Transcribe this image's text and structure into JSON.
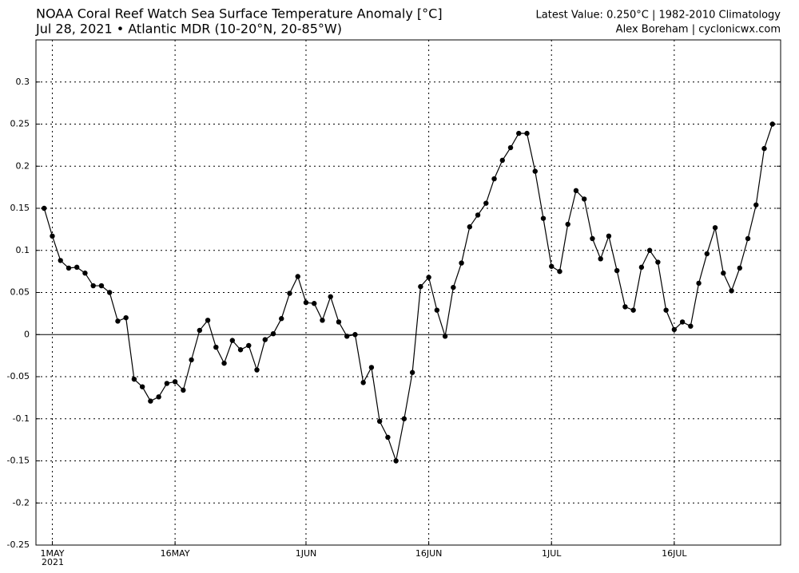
{
  "chart_data": {
    "type": "line",
    "title": "NOAA Coral Reef Watch Sea Surface Temperature Anomaly [°C]",
    "subtitle": "Jul 28, 2021 • Atlantic MDR (10-20°N, 20-85°W)",
    "info": "Latest Value: 0.250°C | 1982-2010 Climatology",
    "credit": "Alex Boreham | cyclonicwx.com",
    "year_label": "2021",
    "color": "#000000",
    "grid": true,
    "xlim": [
      "2021-04-29",
      "2021-07-29"
    ],
    "ylim": [
      -0.25,
      0.35
    ],
    "yticks": [
      -0.25,
      -0.2,
      -0.15,
      -0.1,
      -0.05,
      0,
      0.05,
      0.1,
      0.15,
      0.2,
      0.25,
      0.3
    ],
    "xticks": [
      {
        "value": "2021-05-01",
        "label": "1MAY"
      },
      {
        "value": "2021-05-16",
        "label": "16MAY"
      },
      {
        "value": "2021-06-01",
        "label": "1JUN"
      },
      {
        "value": "2021-06-16",
        "label": "16JUN"
      },
      {
        "value": "2021-07-01",
        "label": "1JUL"
      },
      {
        "value": "2021-07-16",
        "label": "16JUL"
      }
    ],
    "x": [
      "2021-04-30",
      "2021-05-01",
      "2021-05-02",
      "2021-05-03",
      "2021-05-04",
      "2021-05-05",
      "2021-05-06",
      "2021-05-07",
      "2021-05-08",
      "2021-05-09",
      "2021-05-10",
      "2021-05-11",
      "2021-05-12",
      "2021-05-13",
      "2021-05-14",
      "2021-05-15",
      "2021-05-16",
      "2021-05-17",
      "2021-05-18",
      "2021-05-19",
      "2021-05-20",
      "2021-05-21",
      "2021-05-22",
      "2021-05-23",
      "2021-05-24",
      "2021-05-25",
      "2021-05-26",
      "2021-05-27",
      "2021-05-28",
      "2021-05-29",
      "2021-05-30",
      "2021-05-31",
      "2021-06-01",
      "2021-06-02",
      "2021-06-03",
      "2021-06-04",
      "2021-06-05",
      "2021-06-06",
      "2021-06-07",
      "2021-06-08",
      "2021-06-09",
      "2021-06-10",
      "2021-06-11",
      "2021-06-12",
      "2021-06-13",
      "2021-06-14",
      "2021-06-15",
      "2021-06-16",
      "2021-06-17",
      "2021-06-18",
      "2021-06-19",
      "2021-06-20",
      "2021-06-21",
      "2021-06-22",
      "2021-06-23",
      "2021-06-24",
      "2021-06-25",
      "2021-06-26",
      "2021-06-27",
      "2021-06-28",
      "2021-06-29",
      "2021-06-30",
      "2021-07-01",
      "2021-07-02",
      "2021-07-03",
      "2021-07-04",
      "2021-07-05",
      "2021-07-06",
      "2021-07-07",
      "2021-07-08",
      "2021-07-09",
      "2021-07-10",
      "2021-07-11",
      "2021-07-12",
      "2021-07-13",
      "2021-07-14",
      "2021-07-15",
      "2021-07-16",
      "2021-07-17",
      "2021-07-18",
      "2021-07-19",
      "2021-07-20",
      "2021-07-21",
      "2021-07-22",
      "2021-07-23",
      "2021-07-24",
      "2021-07-25",
      "2021-07-26",
      "2021-07-27",
      "2021-07-28"
    ],
    "values": [
      0.15,
      0.117,
      0.088,
      0.079,
      0.08,
      0.073,
      0.058,
      0.058,
      0.05,
      0.016,
      0.02,
      -0.053,
      -0.062,
      -0.079,
      -0.074,
      -0.058,
      -0.056,
      -0.066,
      -0.03,
      0.005,
      0.017,
      -0.015,
      -0.034,
      -0.007,
      -0.018,
      -0.013,
      -0.042,
      -0.006,
      0.001,
      0.019,
      0.049,
      0.069,
      0.038,
      0.037,
      0.017,
      0.045,
      0.015,
      -0.002,
      0.0,
      -0.057,
      -0.039,
      -0.103,
      -0.122,
      -0.15,
      -0.1,
      -0.045,
      0.057,
      0.068,
      0.029,
      -0.002,
      0.056,
      0.085,
      0.128,
      0.142,
      0.156,
      0.185,
      0.207,
      0.222,
      0.239,
      0.239,
      0.194,
      0.138,
      0.081,
      0.075,
      0.131,
      0.171,
      0.161,
      0.114,
      0.09,
      0.117,
      0.076,
      0.033,
      0.029,
      0.08,
      0.1,
      0.086,
      0.029,
      0.006,
      0.015,
      0.01,
      0.061,
      0.096,
      0.127,
      0.073,
      0.052,
      0.079,
      0.114,
      0.154,
      0.221,
      0.25
    ]
  }
}
